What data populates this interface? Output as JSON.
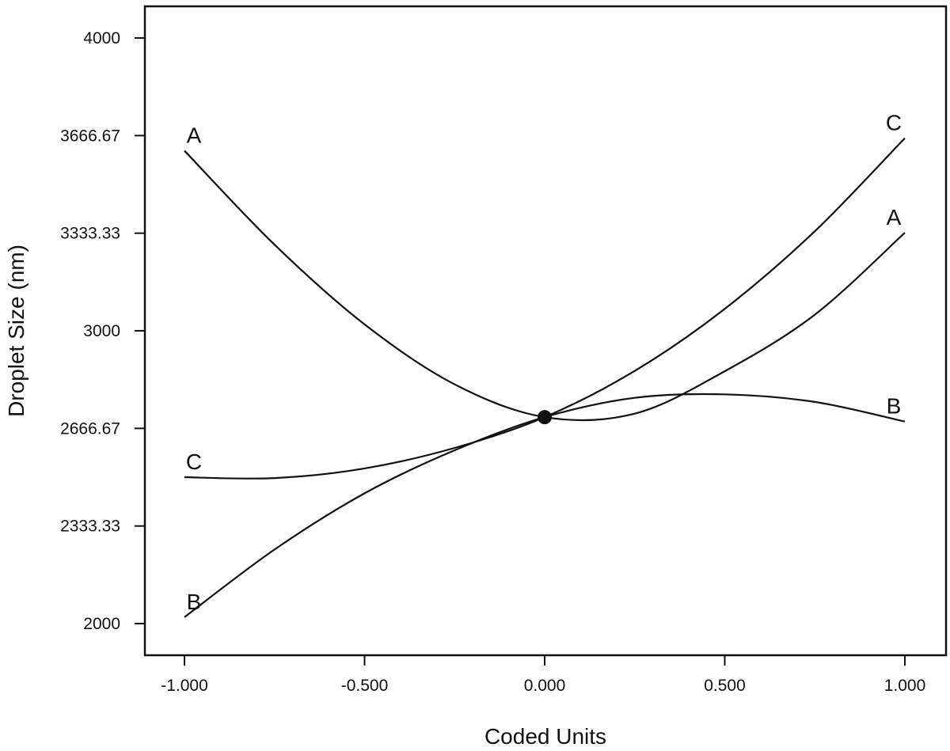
{
  "chart_data": {
    "type": "line",
    "title": "",
    "xlabel": "Coded Units",
    "ylabel": "Droplet Size (nm)",
    "xlim": [
      -1.1,
      1.1
    ],
    "ylim": [
      1900,
      4100
    ],
    "x_ticks": [
      -1.0,
      -0.5,
      0.0,
      0.5,
      1.0
    ],
    "x_tick_labels": [
      "-1.000",
      "-0.500",
      "0.000",
      "0.500",
      "1.000"
    ],
    "y_ticks": [
      2000,
      2333.33,
      2666.67,
      3000,
      3333.33,
      3666.67,
      4000
    ],
    "y_tick_labels": [
      "2000",
      "2333.33",
      "2666.67",
      "3000",
      "3333.33",
      "3666.67",
      "4000"
    ],
    "grid": false,
    "center_point": {
      "x": 0.0,
      "y": 2705
    },
    "series": [
      {
        "name": "A",
        "x": [
          -1.0,
          -0.75,
          -0.5,
          -0.25,
          0.0,
          0.25,
          0.5,
          0.75,
          1.0
        ],
        "values": [
          3615,
          3294,
          3022,
          2817,
          2705,
          2717,
          2862,
          3055,
          3335
        ]
      },
      {
        "name": "B",
        "x": [
          -1.0,
          -0.75,
          -0.5,
          -0.25,
          0.0,
          0.25,
          0.5,
          0.75,
          1.0
        ],
        "values": [
          2022,
          2253,
          2445,
          2592,
          2705,
          2771,
          2783,
          2757,
          2690
        ]
      },
      {
        "name": "C",
        "x": [
          -1.0,
          -0.75,
          -0.5,
          -0.25,
          0.0,
          0.25,
          0.5,
          0.75,
          1.0
        ],
        "values": [
          2500,
          2497,
          2530,
          2600,
          2705,
          2863,
          3075,
          3340,
          3658
        ]
      }
    ],
    "series_labels": [
      {
        "series": "A",
        "end": "start",
        "text": "A"
      },
      {
        "series": "A",
        "end": "end",
        "text": "A"
      },
      {
        "series": "B",
        "end": "start",
        "text": "B"
      },
      {
        "series": "B",
        "end": "end",
        "text": "B"
      },
      {
        "series": "C",
        "end": "start",
        "text": "C"
      },
      {
        "series": "C",
        "end": "end",
        "text": "C"
      }
    ]
  }
}
